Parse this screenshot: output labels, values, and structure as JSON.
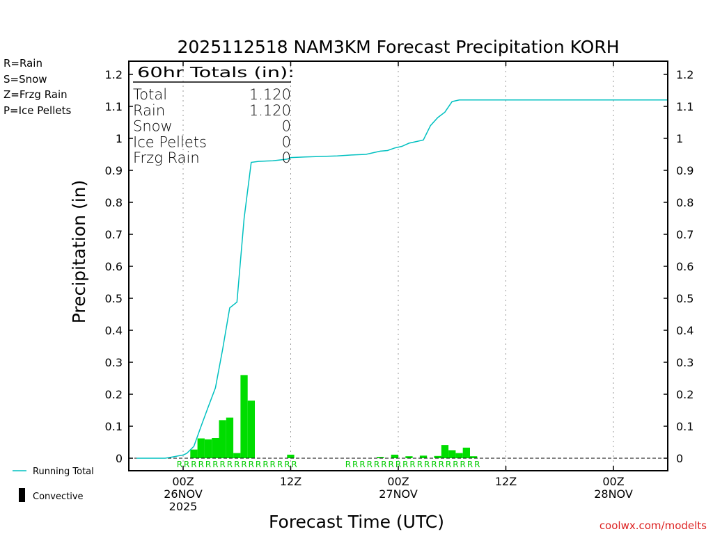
{
  "chart_data": {
    "type": "bar",
    "title": "2025112518 NAM3KM Forecast Precipitation KORH",
    "ylabel": "Precipitation (in)",
    "xlabel": "Forecast Time (UTC)",
    "ylim": [
      0,
      1.2
    ],
    "xlim_hours": [
      -5,
      45
    ],
    "yticks": [
      0,
      0.1,
      0.2,
      0.3,
      0.4,
      0.5,
      0.6,
      0.7,
      0.8,
      0.9,
      1,
      1.1,
      1.2
    ],
    "ytick_labels": [
      "0",
      "0.1",
      "0.2",
      "0.3",
      "0.4",
      "0.5",
      "0.6",
      "0.7",
      "0.8",
      "0.9",
      "1",
      "1.1",
      "1.2"
    ],
    "xticks": [
      {
        "hour": 0,
        "lines": [
          "00Z",
          "26NOV",
          "2025"
        ]
      },
      {
        "hour": 10,
        "lines": [
          "12Z"
        ]
      },
      {
        "hour": 20,
        "lines": [
          "00Z",
          "27NOV"
        ]
      },
      {
        "hour": 30,
        "lines": [
          "12Z"
        ]
      },
      {
        "hour": 40,
        "lines": [
          "00Z",
          "28NOV"
        ]
      }
    ],
    "series": [
      {
        "name": "Rain",
        "color": "#00dd00",
        "bars": [
          {
            "hour": 1,
            "value": 0.027
          },
          {
            "hour": 1.667,
            "value": 0.062
          },
          {
            "hour": 2.333,
            "value": 0.059
          },
          {
            "hour": 3,
            "value": 0.063
          },
          {
            "hour": 3.667,
            "value": 0.119
          },
          {
            "hour": 4.333,
            "value": 0.127
          },
          {
            "hour": 5,
            "value": 0.016
          },
          {
            "hour": 5.667,
            "value": 0.26
          },
          {
            "hour": 6.333,
            "value": 0.18
          },
          {
            "hour": 10,
            "value": 0.011
          },
          {
            "hour": 18.333,
            "value": 0.004
          },
          {
            "hour": 19.667,
            "value": 0.011
          },
          {
            "hour": 21,
            "value": 0.006
          },
          {
            "hour": 22.333,
            "value": 0.008
          },
          {
            "hour": 23.667,
            "value": 0.007
          },
          {
            "hour": 24.333,
            "value": 0.041
          },
          {
            "hour": 25,
            "value": 0.025
          },
          {
            "hour": 25.667,
            "value": 0.016
          },
          {
            "hour": 26.333,
            "value": 0.033
          },
          {
            "hour": 27,
            "value": 0.006
          }
        ]
      },
      {
        "name": "Running Total",
        "color": "#00c0c0",
        "x": [
          -4.333,
          -1.667,
          -1,
          0,
          0.333,
          1,
          1.667,
          2.333,
          3,
          3.667,
          4.333,
          5,
          5.667,
          6.333,
          7,
          8.333,
          9.667,
          10,
          11.333,
          14.333,
          15.667,
          17,
          18.333,
          19,
          19.667,
          20.333,
          21,
          21.667,
          22.333,
          23,
          23.667,
          24.333,
          25,
          25.667,
          26.333,
          27,
          45
        ],
        "y": [
          0,
          0,
          0.004,
          0.01,
          0.015,
          0.037,
          0.1,
          0.16,
          0.22,
          0.34,
          0.47,
          0.488,
          0.75,
          0.925,
          0.928,
          0.93,
          0.935,
          0.94,
          0.942,
          0.945,
          0.948,
          0.95,
          0.96,
          0.962,
          0.97,
          0.975,
          0.985,
          0.99,
          0.995,
          1.04,
          1.065,
          1.082,
          1.115,
          1.12,
          1.12,
          1.12,
          1.12
        ]
      }
    ],
    "rain_markers": {
      "label": "R",
      "hours": [
        -0.333,
        0.333,
        1,
        1.667,
        2.333,
        3,
        3.667,
        4.333,
        5,
        5.667,
        6.333,
        7,
        7.667,
        8.333,
        9,
        9.667,
        10.333,
        15.333,
        16,
        16.667,
        17.333,
        18,
        18.667,
        19.333,
        20,
        20.667,
        21.333,
        22,
        22.667,
        23.333,
        24,
        24.667,
        25.333,
        26,
        26.667,
        27.333
      ]
    }
  },
  "totals_box": {
    "heading": "60hr Totals (in):",
    "rows": [
      {
        "label": "Total",
        "value": "1.120"
      },
      {
        "label": "Rain",
        "value": "1.120"
      },
      {
        "label": "Snow",
        "value": "0"
      },
      {
        "label": "Ice Pellets",
        "value": "0"
      },
      {
        "label": "Frzg Rain",
        "value": "0"
      }
    ]
  },
  "precip_legend": [
    {
      "text": "R=Rain",
      "color": "#00cc00"
    },
    {
      "text": "S=Snow",
      "color": "#3355ee"
    },
    {
      "text": "Z=Frzg Rain",
      "color": "#ee8822"
    },
    {
      "text": "P=Ice Pellets",
      "color": "#ee2288"
    }
  ],
  "bottom_legend": {
    "running_total": "Running Total",
    "convective": "Convective"
  },
  "credit": "coolwx.com/modelts",
  "colors": {
    "rain": "#00dd00",
    "running_total": "#00c0c0",
    "credit": "#dd2222",
    "axis": "#000000"
  }
}
